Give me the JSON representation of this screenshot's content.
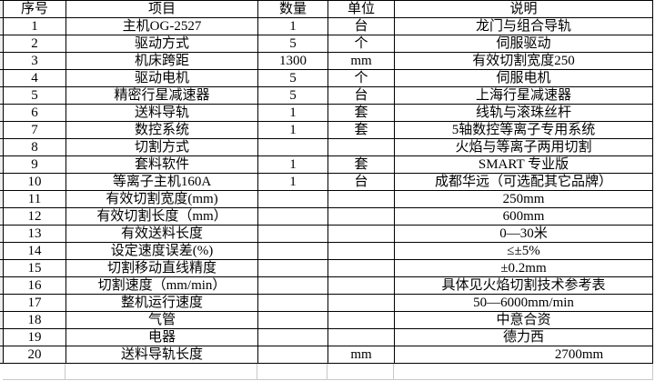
{
  "colors": {
    "table_border": "#000000",
    "faint_grid": "#c9c9c9",
    "background": "#ffffff",
    "text": "#000000"
  },
  "table": {
    "headers": [
      "序号",
      "项目",
      "数量",
      "单位",
      "说明"
    ],
    "rows": [
      [
        "1",
        "主机OG-2527",
        "1",
        "台",
        "龙门与组合导轨"
      ],
      [
        "2",
        "驱动方式",
        "5",
        "个",
        "伺服驱动"
      ],
      [
        "3",
        "机床跨距",
        "1300",
        "mm",
        "有效切割宽度250"
      ],
      [
        "4",
        "驱动电机",
        "5",
        "个",
        "伺服电机"
      ],
      [
        "5",
        "精密行星减速器",
        "5",
        "台",
        "上海行星减速器"
      ],
      [
        "6",
        "送料导轨",
        "1",
        "套",
        "线轨与滚珠丝杆"
      ],
      [
        "7",
        "数控系统",
        "1",
        "套",
        "5轴数控等离子专用系统"
      ],
      [
        "8",
        "切割方式",
        "",
        "",
        "火焰与等离子两用切割"
      ],
      [
        "9",
        "套料软件",
        "1",
        "套",
        "SMART 专业版"
      ],
      [
        "10",
        "等离子主机160A",
        "1",
        "台",
        "成都华远（可选配其它品牌）"
      ],
      [
        "11",
        "有效切割宽度(mm)",
        "",
        "",
        "250mm"
      ],
      [
        "12",
        "有效切割长度（mm）",
        "",
        "",
        "600mm"
      ],
      [
        "13",
        "有效送料长度",
        "",
        "",
        "0—30米"
      ],
      [
        "14",
        "设定速度误差(%)",
        "",
        "",
        "≤±5%"
      ],
      [
        "15",
        "切割移动直线精度",
        "",
        "",
        "±0.2mm"
      ],
      [
        "16",
        "切割速度（mm/min）",
        "",
        "",
        "具体见火焰切割技术参考表"
      ],
      [
        "17",
        "整机运行速度",
        "",
        "",
        "50—6000mm/min"
      ],
      [
        "18",
        "气管",
        "",
        "",
        "中意合资"
      ],
      [
        "19",
        "电器",
        "",
        "",
        "德力西"
      ],
      [
        "20",
        "送料导轨长度",
        "",
        "mm",
        "2700mm"
      ]
    ]
  }
}
